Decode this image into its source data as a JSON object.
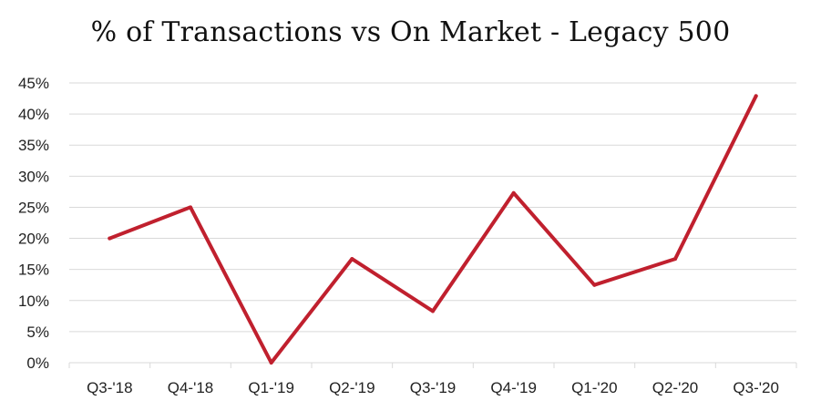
{
  "chart_data": {
    "type": "line",
    "title": "% of Transactions vs On Market - Legacy 500",
    "xlabel": "",
    "ylabel": "",
    "categories": [
      "Q3-'18",
      "Q4-'18",
      "Q1-'19",
      "Q2-'19",
      "Q3-'19",
      "Q4-'19",
      "Q1-'20",
      "Q2-'20",
      "Q3-'20"
    ],
    "series": [
      {
        "values": [
          20,
          25,
          0,
          16.7,
          8.3,
          27.3,
          12.5,
          16.7,
          42.9
        ]
      }
    ],
    "ylim": [
      0,
      45
    ],
    "yticks": [
      0,
      5,
      10,
      15,
      20,
      25,
      30,
      35,
      40,
      45
    ],
    "ytick_labels": [
      "0%",
      "5%",
      "10%",
      "15%",
      "20%",
      "25%",
      "30%",
      "35%",
      "40%",
      "45%"
    ],
    "grid": true,
    "legend": "none",
    "line_color": "#c0202e",
    "grid_color": "#d9d9d9"
  }
}
